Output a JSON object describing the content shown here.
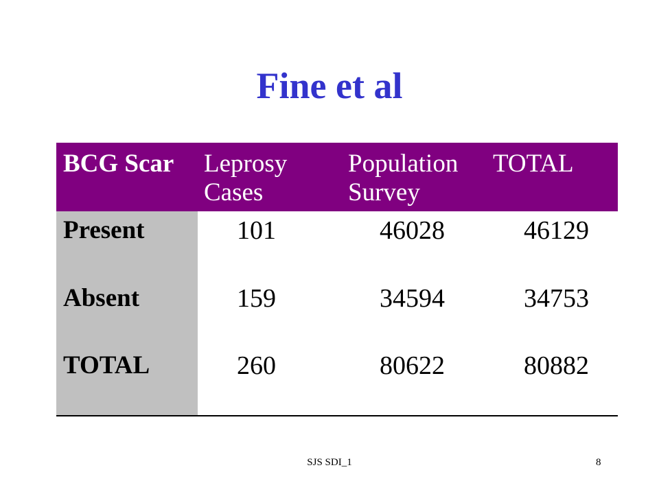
{
  "title": "Fine et al",
  "table": {
    "header": [
      [
        "BCG Scar"
      ],
      [
        "Leprosy",
        "Cases"
      ],
      [
        "Population",
        "Survey"
      ],
      [
        "TOTAL"
      ]
    ],
    "rows": [
      [
        "Present",
        101,
        46028,
        46129
      ],
      [
        "Absent",
        159,
        34594,
        34753
      ],
      [
        "TOTAL",
        260,
        80622,
        80882
      ]
    ]
  },
  "footer": {
    "text": "SJS  SDI_1",
    "page": "8"
  }
}
